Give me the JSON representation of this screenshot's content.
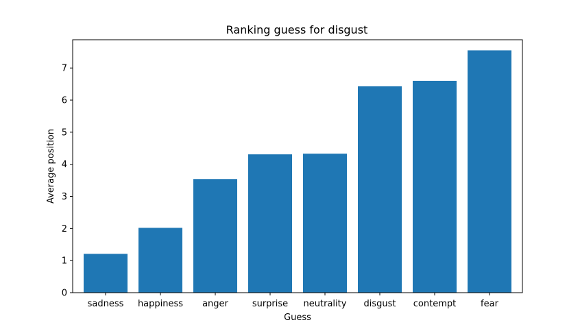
{
  "chart_data": {
    "type": "bar",
    "title": "Ranking guess for disgust",
    "xlabel": "Guess",
    "ylabel": "Average position",
    "categories": [
      "sadness",
      "happiness",
      "anger",
      "surprise",
      "neutrality",
      "disgust",
      "contempt",
      "fear"
    ],
    "values": [
      1.21,
      2.02,
      3.54,
      4.31,
      4.33,
      6.43,
      6.6,
      7.55
    ],
    "ylim": [
      0,
      7.88
    ],
    "yticks": [
      0,
      1,
      2,
      3,
      4,
      5,
      6,
      7
    ],
    "grid": false,
    "bar_color": "#1f77b4"
  }
}
